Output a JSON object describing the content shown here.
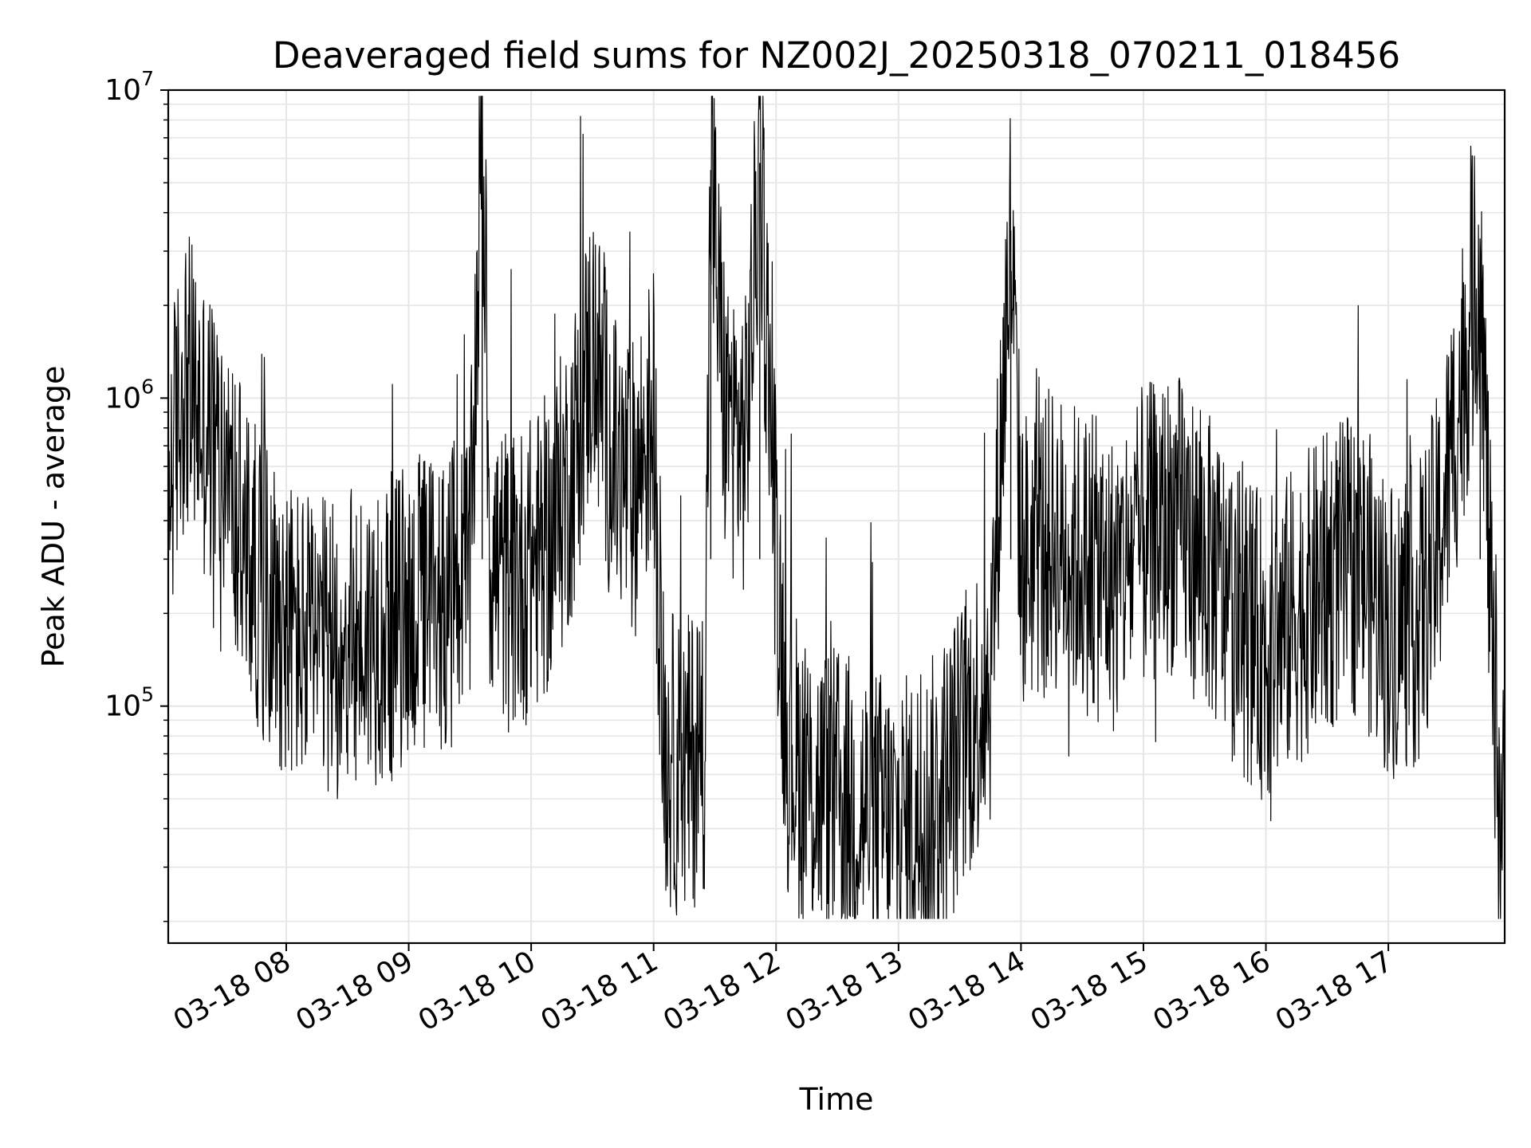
{
  "chart_data": {
    "type": "line",
    "title": "Deaveraged field sums for NZ002J_20250318_070211_018456",
    "xlabel": "Time",
    "ylabel": "Peak ADU - average",
    "yscale": "log",
    "ylim": [
      17000,
      10000000
    ],
    "xlim": [
      "2025-03-18 07:02:11",
      "2025-03-18 17:57:00"
    ],
    "grid": true,
    "line_color": "#000000",
    "grid_color": "#e6e6e6",
    "x_ticks": [
      {
        "label": "03-18 08",
        "time": "2025-03-18 08:00"
      },
      {
        "label": "03-18 09",
        "time": "2025-03-18 09:00"
      },
      {
        "label": "03-18 10",
        "time": "2025-03-18 10:00"
      },
      {
        "label": "03-18 11",
        "time": "2025-03-18 11:00"
      },
      {
        "label": "03-18 12",
        "time": "2025-03-18 12:00"
      },
      {
        "label": "03-18 13",
        "time": "2025-03-18 13:00"
      },
      {
        "label": "03-18 14",
        "time": "2025-03-18 14:00"
      },
      {
        "label": "03-18 15",
        "time": "2025-03-18 15:00"
      },
      {
        "label": "03-18 16",
        "time": "2025-03-18 16:00"
      },
      {
        "label": "03-18 17",
        "time": "2025-03-18 17:00"
      }
    ],
    "y_ticks": [
      {
        "base": "10",
        "exp": "5",
        "value": 100000
      },
      {
        "base": "10",
        "exp": "6",
        "value": 1000000
      },
      {
        "base": "10",
        "exp": "7",
        "value": 10000000
      }
    ],
    "series": [
      {
        "x": [
          "07:02",
          "07:10",
          "07:20",
          "07:30",
          "07:40",
          "07:50",
          "08:00",
          "08:10",
          "08:20",
          "08:30",
          "08:40",
          "08:50",
          "09:00",
          "09:10",
          "09:20",
          "09:30",
          "09:36",
          "09:40",
          "09:50",
          "10:00",
          "10:10",
          "10:20",
          "10:30",
          "10:35",
          "10:40",
          "10:50",
          "11:00",
          "11:05",
          "11:15",
          "11:25",
          "11:28",
          "11:35",
          "11:45",
          "11:52",
          "11:58",
          "12:05",
          "12:15",
          "12:30",
          "12:45",
          "13:00",
          "13:15",
          "13:30",
          "13:45",
          "13:55",
          "14:00",
          "14:15",
          "14:30",
          "14:45",
          "15:00",
          "15:15",
          "15:30",
          "15:45",
          "16:00",
          "16:15",
          "16:30",
          "16:45",
          "17:00",
          "17:15",
          "17:25",
          "17:35",
          "17:45",
          "17:52",
          "17:57"
        ],
        "y": [
          500000,
          1200000,
          800000,
          600000,
          300000,
          250000,
          180000,
          160000,
          150000,
          160000,
          170000,
          180000,
          200000,
          220000,
          230000,
          260000,
          8500000,
          300000,
          250000,
          280000,
          350000,
          600000,
          1500000,
          1000000,
          600000,
          500000,
          900000,
          70000,
          60000,
          80000,
          5500000,
          900000,
          700000,
          5800000,
          700000,
          80000,
          55000,
          50000,
          45000,
          40000,
          45000,
          70000,
          130000,
          3500000,
          300000,
          350000,
          300000,
          250000,
          350000,
          400000,
          300000,
          200000,
          150000,
          200000,
          250000,
          300000,
          180000,
          200000,
          350000,
          1000000,
          3000000,
          80000,
          35000
        ]
      }
    ]
  }
}
